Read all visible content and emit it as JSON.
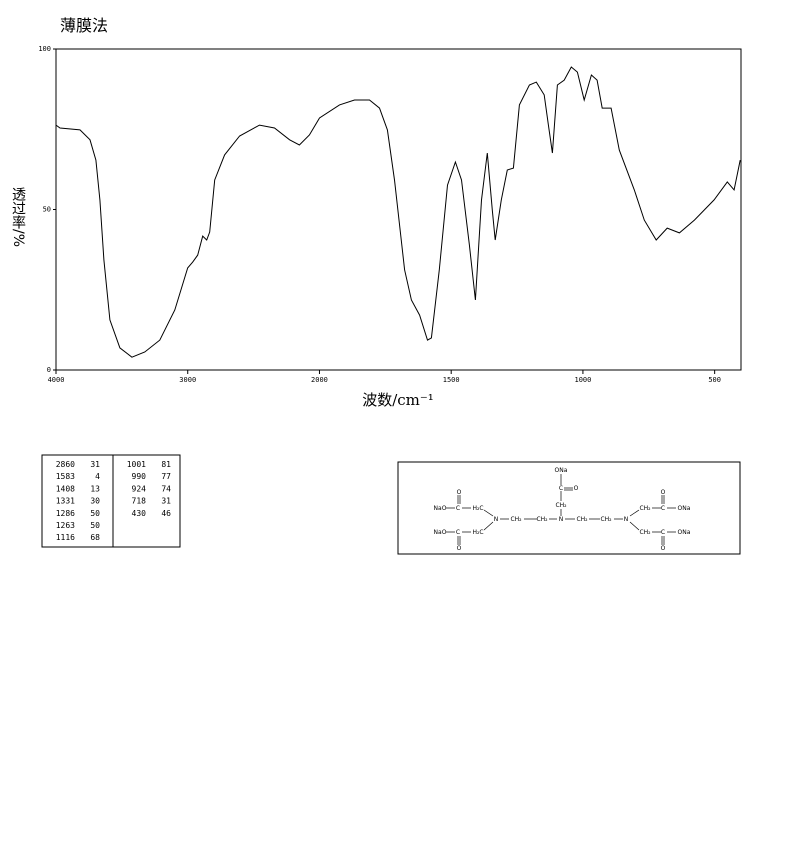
{
  "chart_data": {
    "type": "line",
    "title": "薄膜法",
    "x_label": "波数/cm⁻¹",
    "y_label": "透过率/%",
    "xlim": [
      4000,
      400
    ],
    "x_scale_break": 2000,
    "xticks": [
      4000,
      3000,
      2000,
      1500,
      1000,
      500
    ],
    "ylim": [
      0,
      100
    ],
    "yticks": [
      0,
      50,
      100
    ],
    "color": "#000000",
    "x": [
      4000,
      3970,
      3818,
      3742,
      3697,
      3667,
      3636,
      3591,
      3515,
      3424,
      3326,
      3212,
      3098,
      3000,
      2962,
      2924,
      2886,
      2856,
      2833,
      2795,
      2720,
      2606,
      2455,
      2341,
      2227,
      2152,
      2076,
      2000,
      1924,
      1867,
      1810,
      1772,
      1742,
      1715,
      1677,
      1651,
      1620,
      1590,
      1575,
      1545,
      1514,
      1484,
      1461,
      1431,
      1408,
      1385,
      1363,
      1344,
      1333,
      1310,
      1287,
      1264,
      1241,
      1203,
      1177,
      1147,
      1131,
      1116,
      1097,
      1071,
      1044,
      1021,
      995,
      968,
      946,
      927,
      893,
      862,
      805,
      767,
      722,
      680,
      634,
      577,
      502,
      452,
      426,
      403
    ],
    "values": [
      76.3,
      75.4,
      74.8,
      71.7,
      65.4,
      53,
      34.3,
      15.6,
      6.9,
      4,
      5.6,
      9.3,
      18.7,
      31.8,
      33.6,
      35.8,
      41.7,
      40.5,
      43,
      59.2,
      67,
      72.9,
      76.3,
      75.4,
      71.7,
      70.1,
      73.2,
      78.5,
      82.6,
      84.1,
      84.1,
      81.6,
      74.8,
      59.2,
      31.2,
      21.8,
      17.1,
      9.3,
      10,
      31.2,
      57.6,
      64.8,
      59.2,
      38.9,
      21.8,
      53,
      67.6,
      49.8,
      40.5,
      53,
      62.3,
      62.9,
      82.6,
      88.8,
      89.7,
      85.7,
      76.3,
      67.6,
      88.8,
      90.3,
      94.4,
      92.8,
      84.1,
      91.9,
      90.3,
      81.6,
      81.6,
      68.5,
      56.1,
      46.7,
      40.5,
      44.2,
      42.7,
      46.7,
      53,
      58.6,
      56.1,
      65.4
    ]
  },
  "peak_table": [
    [
      2860,
      31
    ],
    [
      1583,
      4
    ],
    [
      1408,
      13
    ],
    [
      1331,
      30
    ],
    [
      1286,
      50
    ],
    [
      1263,
      50
    ],
    [
      1116,
      68
    ],
    [
      1001,
      81
    ],
    [
      990,
      77
    ],
    [
      924,
      74
    ],
    [
      718,
      31
    ],
    [
      430,
      46
    ]
  ],
  "structure": {
    "labels": [
      "ONa",
      "C",
      "O",
      "CH₂",
      "NaO",
      "C",
      "H₂C",
      "O",
      "N",
      "CH₂",
      "CH₂",
      "N",
      "CH₂",
      "CH₂",
      "N",
      "NaO",
      "C",
      "H₂C",
      "O",
      "CH₂",
      "C",
      "ONa",
      "O",
      "CH₂",
      "C",
      "ONa",
      "O"
    ]
  }
}
